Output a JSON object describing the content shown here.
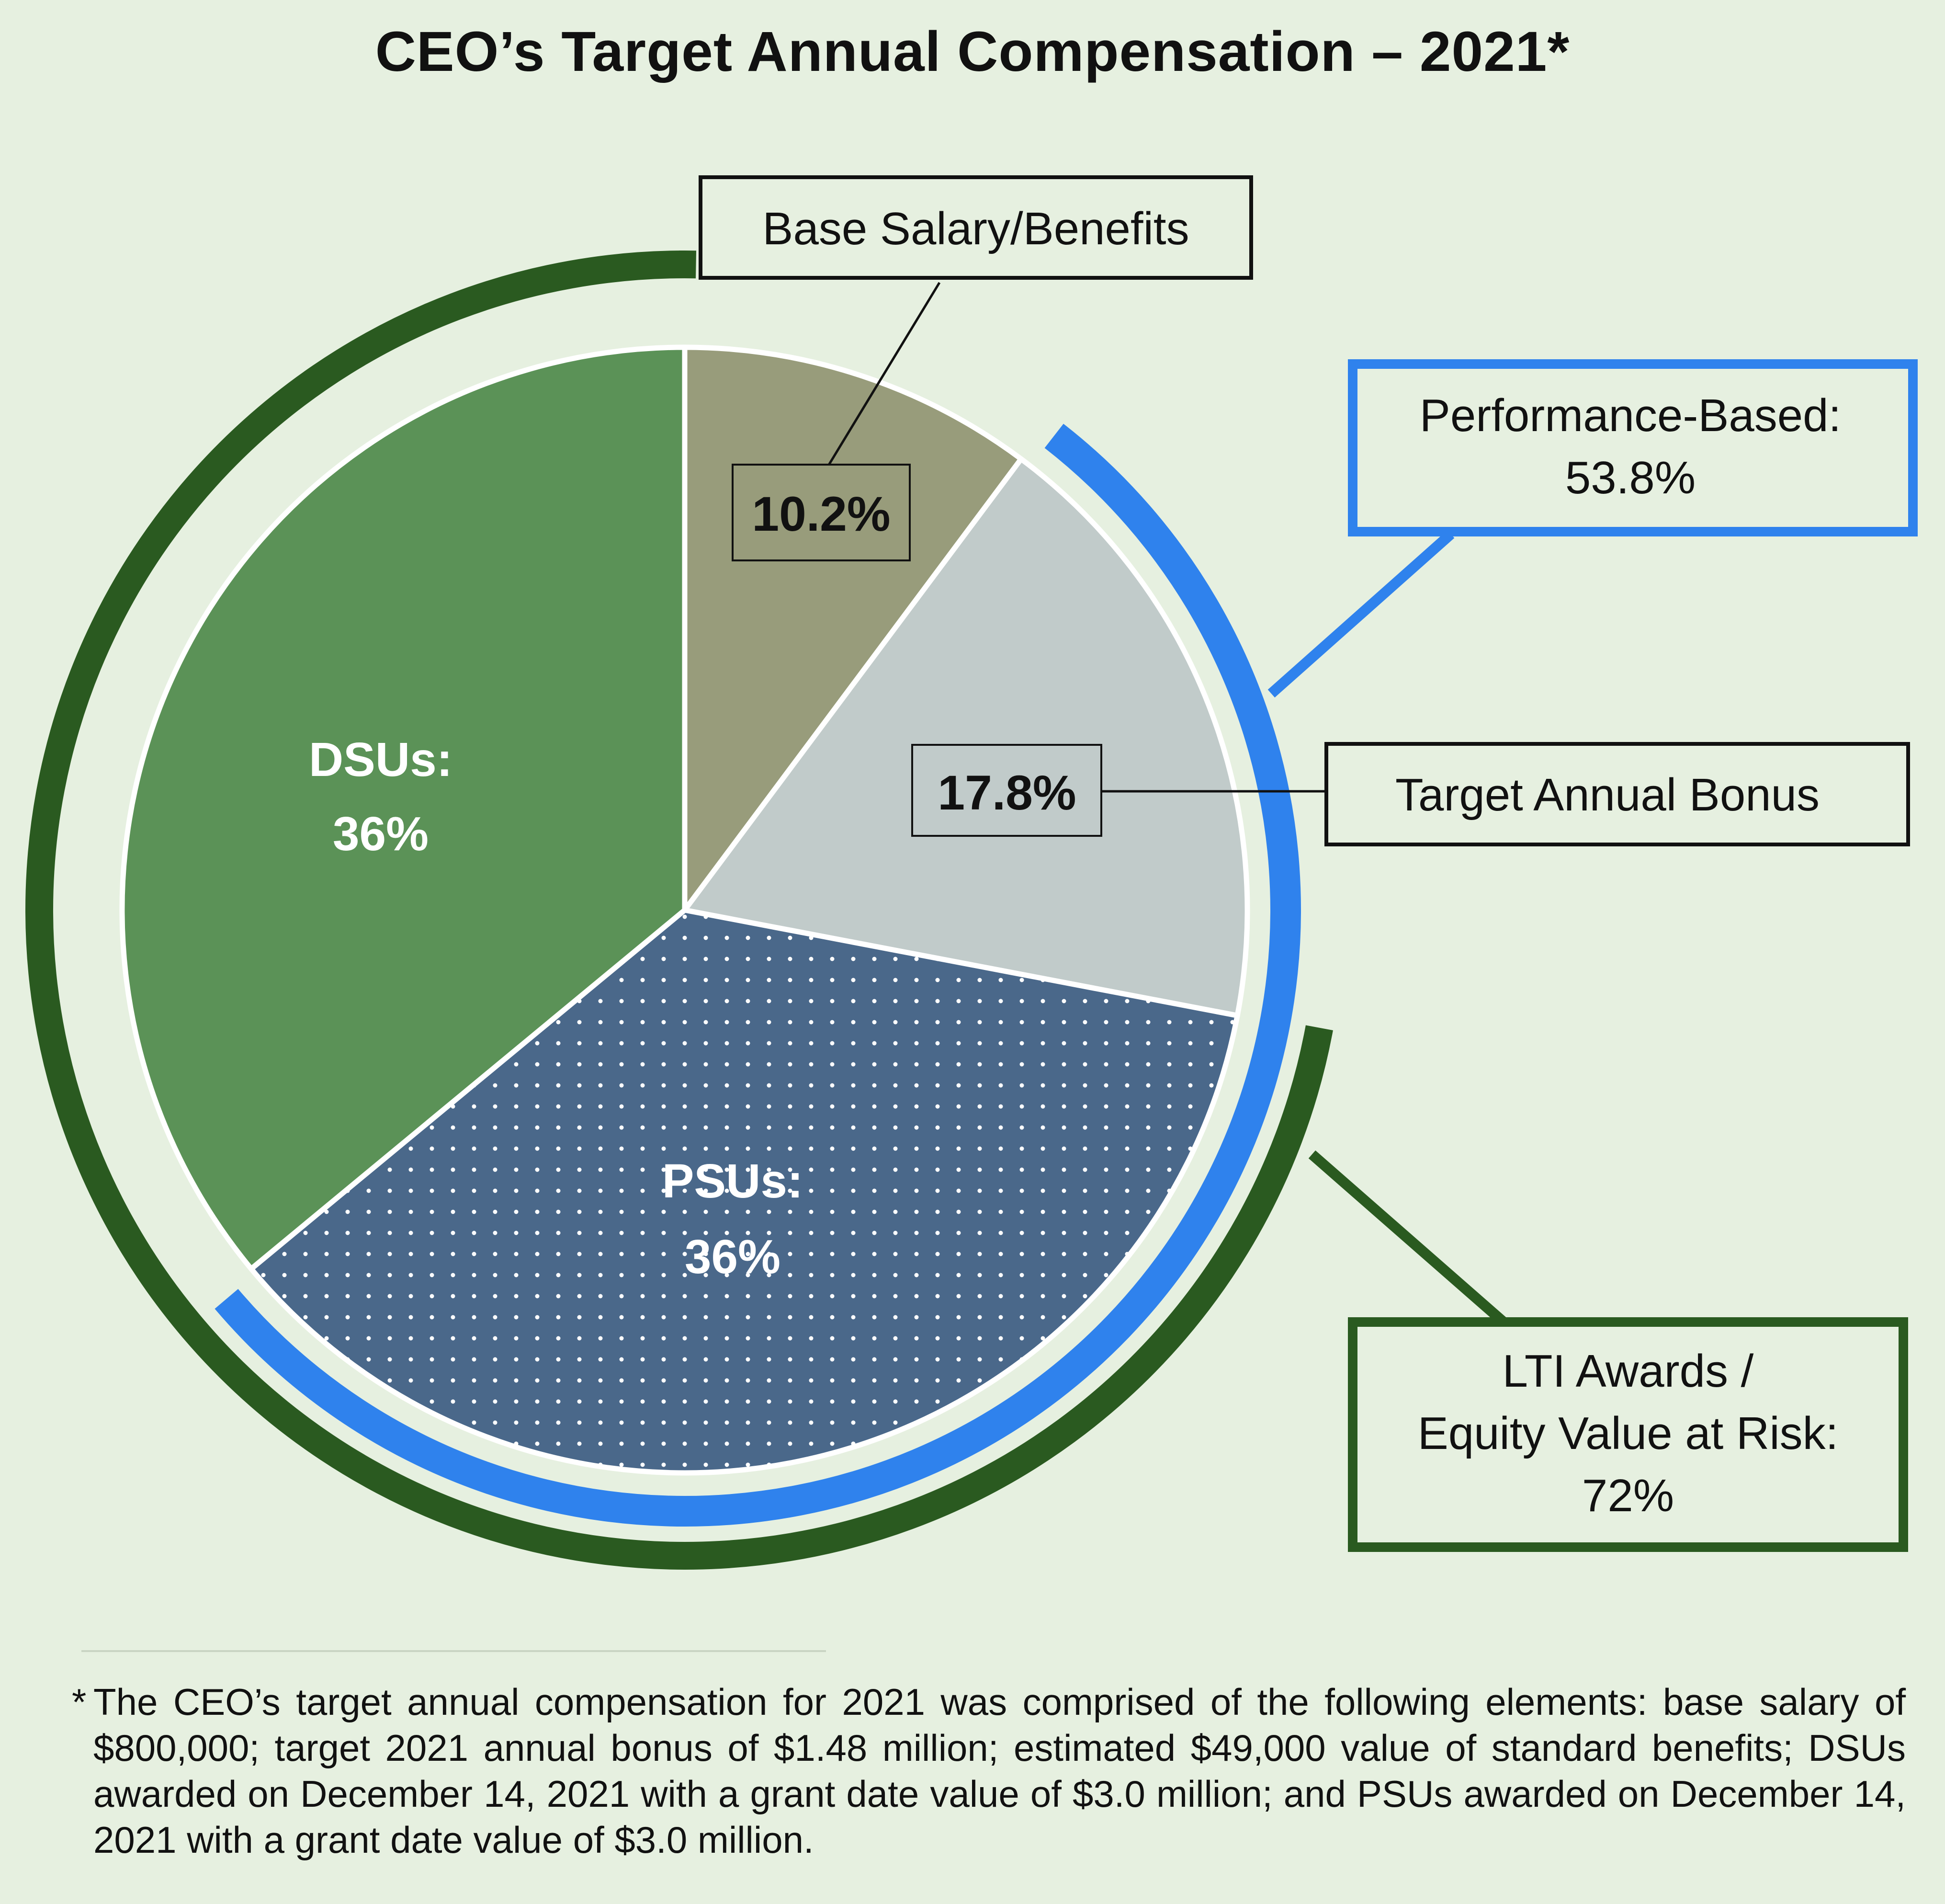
{
  "title": "CEO’s Target Annual Compensation – 2021*",
  "colors": {
    "background": "#e6f0e0",
    "base_salary": "#989c7b",
    "target_bonus": "#c1cbca",
    "psus": "#4a688a",
    "dsus": "#5b9257",
    "performance_ring": "#2f82ed",
    "lti_ring": "#2a5a20"
  },
  "chart_data": {
    "type": "pie",
    "title": "CEO’s Target Annual Compensation – 2021*",
    "slices": [
      {
        "name": "Base Salary/Benefits",
        "value": 10.2,
        "label": "10.2%"
      },
      {
        "name": "Target Annual Bonus",
        "value": 17.8,
        "label": "17.8%"
      },
      {
        "name": "PSUs",
        "value": 36,
        "label_line1": "PSUs:",
        "label_line2": "36%"
      },
      {
        "name": "DSUs",
        "value": 36,
        "label_line1": "DSUs:",
        "label_line2": "36%"
      }
    ],
    "groups": [
      {
        "line1": "Performance-Based:",
        "line2": "53.8%",
        "value": 53.8,
        "covers": [
          "Target Annual Bonus",
          "PSUs"
        ]
      },
      {
        "line1": "LTI Awards /",
        "line2": "Equity Value at Risk:",
        "line3": "72%",
        "value": 72,
        "covers": [
          "PSUs",
          "DSUs"
        ]
      }
    ]
  },
  "footnote": {
    "marker": "*",
    "text": "The CEO’s target annual compensation for 2021 was comprised of the following elements: base salary of $800,000; target 2021 annual bonus of $1.48 million; estimated $49,000 value of standard benefits; DSUs awarded on December 14, 2021 with a grant date value of $3.0 million; and PSUs awarded on December 14, 2021 with a grant date value of $3.0 million."
  }
}
